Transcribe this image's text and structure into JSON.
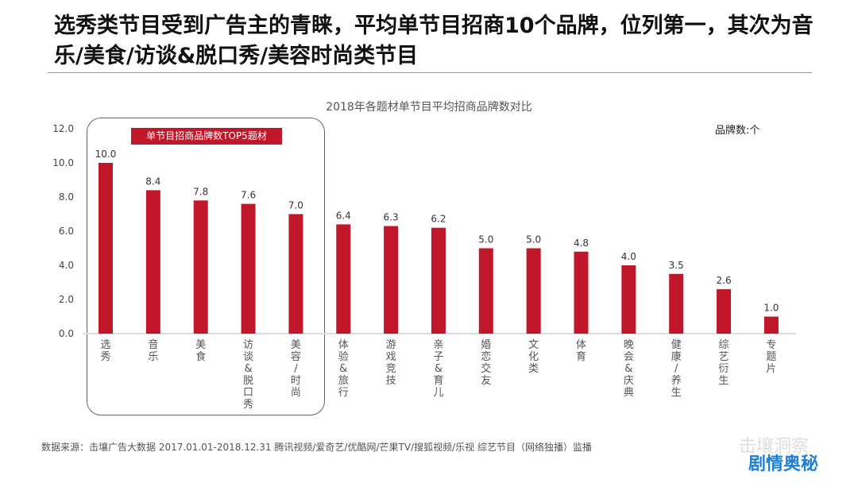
{
  "header": {
    "title": "选秀类节目受到广告主的青睐，平均单节目招商10个品牌，位列第一，其次为音乐/美食/访谈&脱口秀/美容时尚类节目"
  },
  "highlight_label": "单节目招商品牌数TOP5题材",
  "source": "数据来源：击壤广告大数据   2017.01.01-2018.12.31 腾讯视频/爱奇艺/优酷网/芒果TV/搜狐视频/乐视 综艺节目（网络独播）监播",
  "watermark": {
    "text1": "击壤洞察",
    "text2": "剧情奥秘"
  },
  "chart_data": {
    "type": "bar",
    "title": "2018年各题材单节目平均招商品牌数对比",
    "ylabel": "品牌数:个",
    "ylim": [
      0,
      12
    ],
    "yticks": [
      "0.0",
      "2.0",
      "4.0",
      "6.0",
      "8.0",
      "10.0",
      "12.0"
    ],
    "categories": [
      "选秀",
      "音乐",
      "美食",
      "访谈&脱口秀",
      "美容/时尚",
      "体验&旅行",
      "游戏竞技",
      "亲子&育儿",
      "婚恋交友",
      "文化类",
      "体育",
      "晚会&庆典",
      "健康/养生",
      "综艺衍生",
      "专题片"
    ],
    "values": [
      10.0,
      8.4,
      7.8,
      7.6,
      7.0,
      6.4,
      6.3,
      6.2,
      5.0,
      5.0,
      4.8,
      4.0,
      3.5,
      2.6,
      1.0
    ],
    "color": "#c0182a"
  }
}
